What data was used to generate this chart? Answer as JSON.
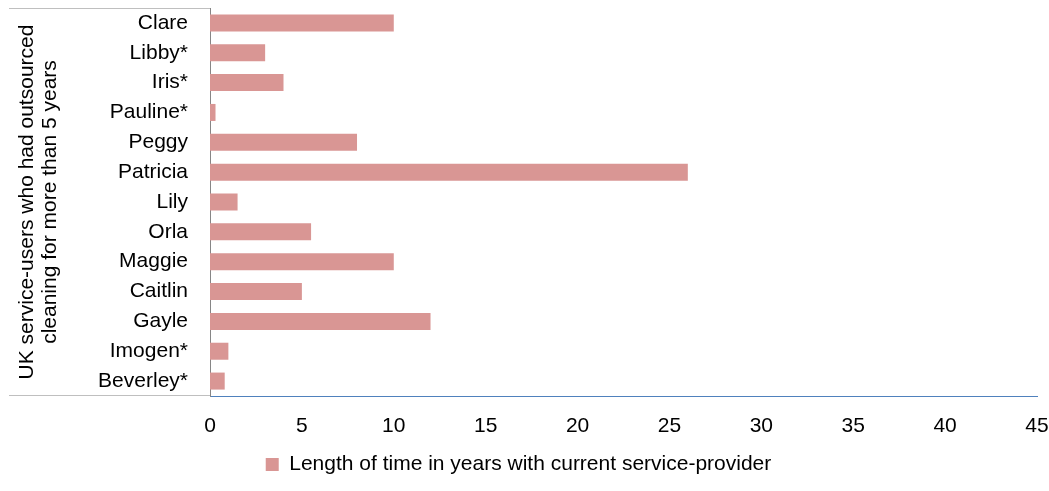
{
  "chart_data": {
    "type": "bar",
    "orientation": "horizontal",
    "ylabel": "UK service-users who had outsourced cleaning for more than 5 years",
    "categories": [
      "Clare",
      "Libby*",
      "Iris*",
      "Pauline*",
      "Peggy",
      "Patricia",
      "Lily",
      "Orla",
      "Maggie",
      "Caitlin",
      "Gayle",
      "Imogen*",
      "Beverley*"
    ],
    "series": [
      {
        "name": "Length of time in years with current service-provider",
        "color": "#d99694",
        "values": [
          10,
          3,
          4,
          0.3,
          8,
          26,
          1.5,
          5.5,
          10,
          5,
          12,
          1,
          0.8
        ]
      }
    ],
    "xlim": [
      0,
      45
    ],
    "xticks": [
      0,
      5,
      10,
      15,
      20,
      25,
      30,
      35,
      40,
      45
    ],
    "legend": "bottom"
  }
}
